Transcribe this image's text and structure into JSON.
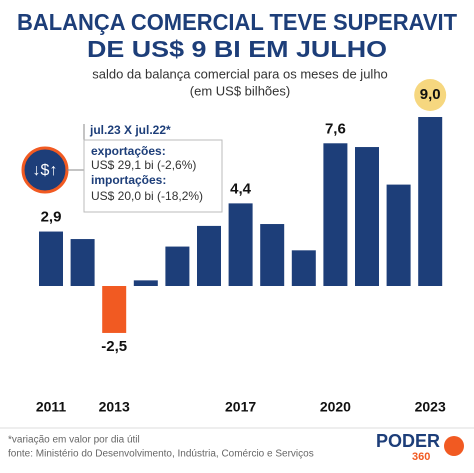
{
  "chart_data": {
    "type": "bar",
    "title": [
      "BALANÇA COMERCIAL TEVE SUPERAVIT",
      "DE US$ 9 BI EM JULHO"
    ],
    "subtitle": [
      "saldo da balança comercial para os meses de julho",
      "(em US$ bilhões)"
    ],
    "categories": [
      "2011",
      null,
      "2013",
      null,
      null,
      null,
      "2017",
      null,
      null,
      "2020",
      null,
      null,
      "2023"
    ],
    "values": [
      2.9,
      2.5,
      -2.5,
      0.3,
      2.1,
      3.2,
      4.4,
      3.3,
      1.9,
      7.6,
      7.4,
      5.4,
      9.0
    ],
    "value_labels": [
      "2,9",
      null,
      "-2,5",
      null,
      null,
      null,
      "4,4",
      null,
      null,
      "7,6",
      null,
      null,
      "9,0"
    ],
    "color": "#1d3e79",
    "negative_color": "#f15a22",
    "highlight_color": "#f6d77f",
    "annotation": {
      "icon": "↓$↑",
      "heading": "jul.23 X jul.22*",
      "lines": [
        "exportações:",
        "US$ 29,1 bi (-2,6%)",
        "importações:",
        "US$ 20,0 bi (-18,2%)"
      ]
    },
    "footnote": "*variação em valor por dia útil",
    "source": "fonte: Ministério do Desenvolvimento, Indústria, Comércio e Serviços",
    "logo": [
      "PODER",
      "360"
    ]
  }
}
